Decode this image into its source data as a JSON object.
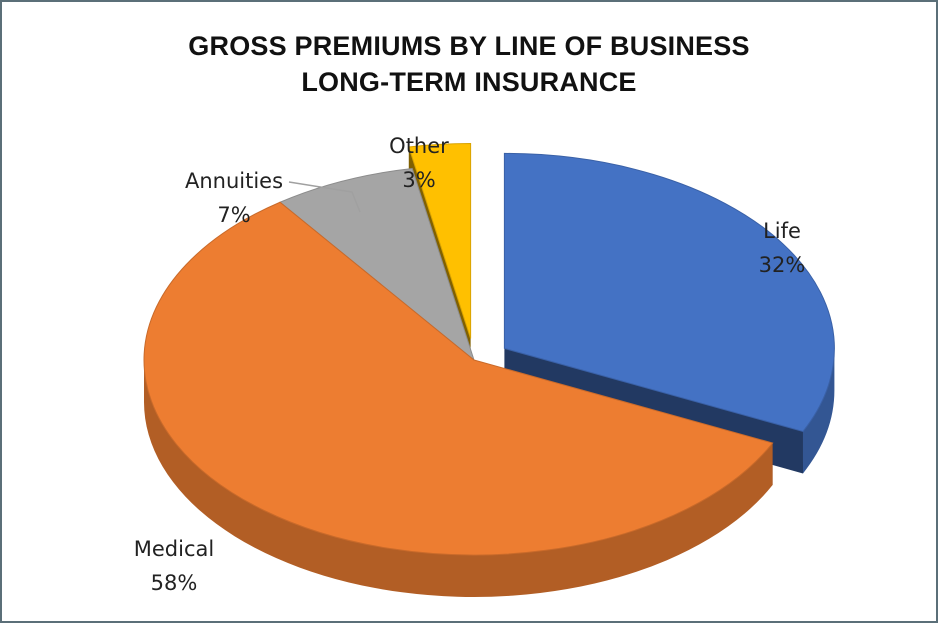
{
  "chart_data": {
    "type": "pie",
    "title": [
      "GROSS PREMIUMS BY LINE OF BUSINESS",
      "LONG-TERM INSURANCE"
    ],
    "slices": [
      {
        "label": "Life",
        "value": 32,
        "display": "32%",
        "color": "#4472c4",
        "exploded": true
      },
      {
        "label": "Medical",
        "value": 58,
        "display": "58%",
        "color": "#ed7d31",
        "exploded": false
      },
      {
        "label": "Annuities",
        "value": 7,
        "display": "7%",
        "color": "#a5a5a5",
        "exploded": false
      },
      {
        "label": "Other",
        "value": 3,
        "display": "3%",
        "color": "#ffc000",
        "exploded": true
      }
    ]
  }
}
